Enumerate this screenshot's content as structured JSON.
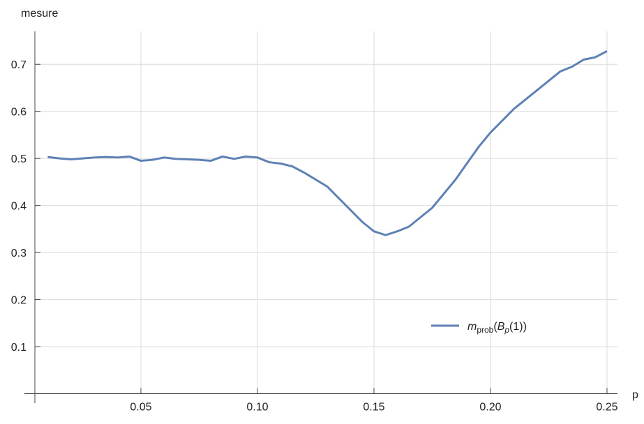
{
  "chart_data": {
    "type": "line",
    "xlabel": "p",
    "ylabel": "mesure",
    "x": [
      0.01,
      0.015,
      0.02,
      0.025,
      0.03,
      0.035,
      0.04,
      0.045,
      0.05,
      0.055,
      0.06,
      0.065,
      0.07,
      0.075,
      0.08,
      0.085,
      0.09,
      0.095,
      0.1,
      0.105,
      0.11,
      0.115,
      0.12,
      0.125,
      0.13,
      0.135,
      0.14,
      0.145,
      0.15,
      0.155,
      0.16,
      0.165,
      0.17,
      0.175,
      0.18,
      0.185,
      0.19,
      0.195,
      0.2,
      0.205,
      0.21,
      0.215,
      0.22,
      0.225,
      0.23,
      0.235,
      0.24,
      0.245,
      0.25
    ],
    "series": [
      {
        "name": [
          "m",
          "prob",
          "(",
          "B",
          "p",
          "(1))"
        ],
        "color": "#5e81b5",
        "values": [
          0.503,
          0.5,
          0.498,
          0.5,
          0.502,
          0.503,
          0.502,
          0.504,
          0.495,
          0.497,
          0.502,
          0.499,
          0.498,
          0.497,
          0.495,
          0.504,
          0.499,
          0.504,
          0.502,
          0.492,
          0.489,
          0.483,
          0.47,
          0.455,
          0.44,
          0.415,
          0.39,
          0.365,
          0.345,
          0.337,
          0.345,
          0.355,
          0.375,
          0.395,
          0.425,
          0.455,
          0.49,
          0.525,
          0.555,
          0.58,
          0.605,
          0.625,
          0.645,
          0.665,
          0.685,
          0.695,
          0.71,
          0.715,
          0.728
        ]
      }
    ],
    "xlim": [
      0.0045,
      0.2545
    ],
    "ylim": [
      0,
      0.77
    ],
    "xticks": [
      0.05,
      {
        "value": 0.1,
        "label": "0.10"
      },
      0.15,
      {
        "value": 0.2,
        "label": "0.20"
      },
      0.25
    ],
    "yticks": [
      0.1,
      0.2,
      0.3,
      0.4,
      0.5,
      0.6,
      0.7
    ],
    "grid": true,
    "legend": "lower-right"
  }
}
